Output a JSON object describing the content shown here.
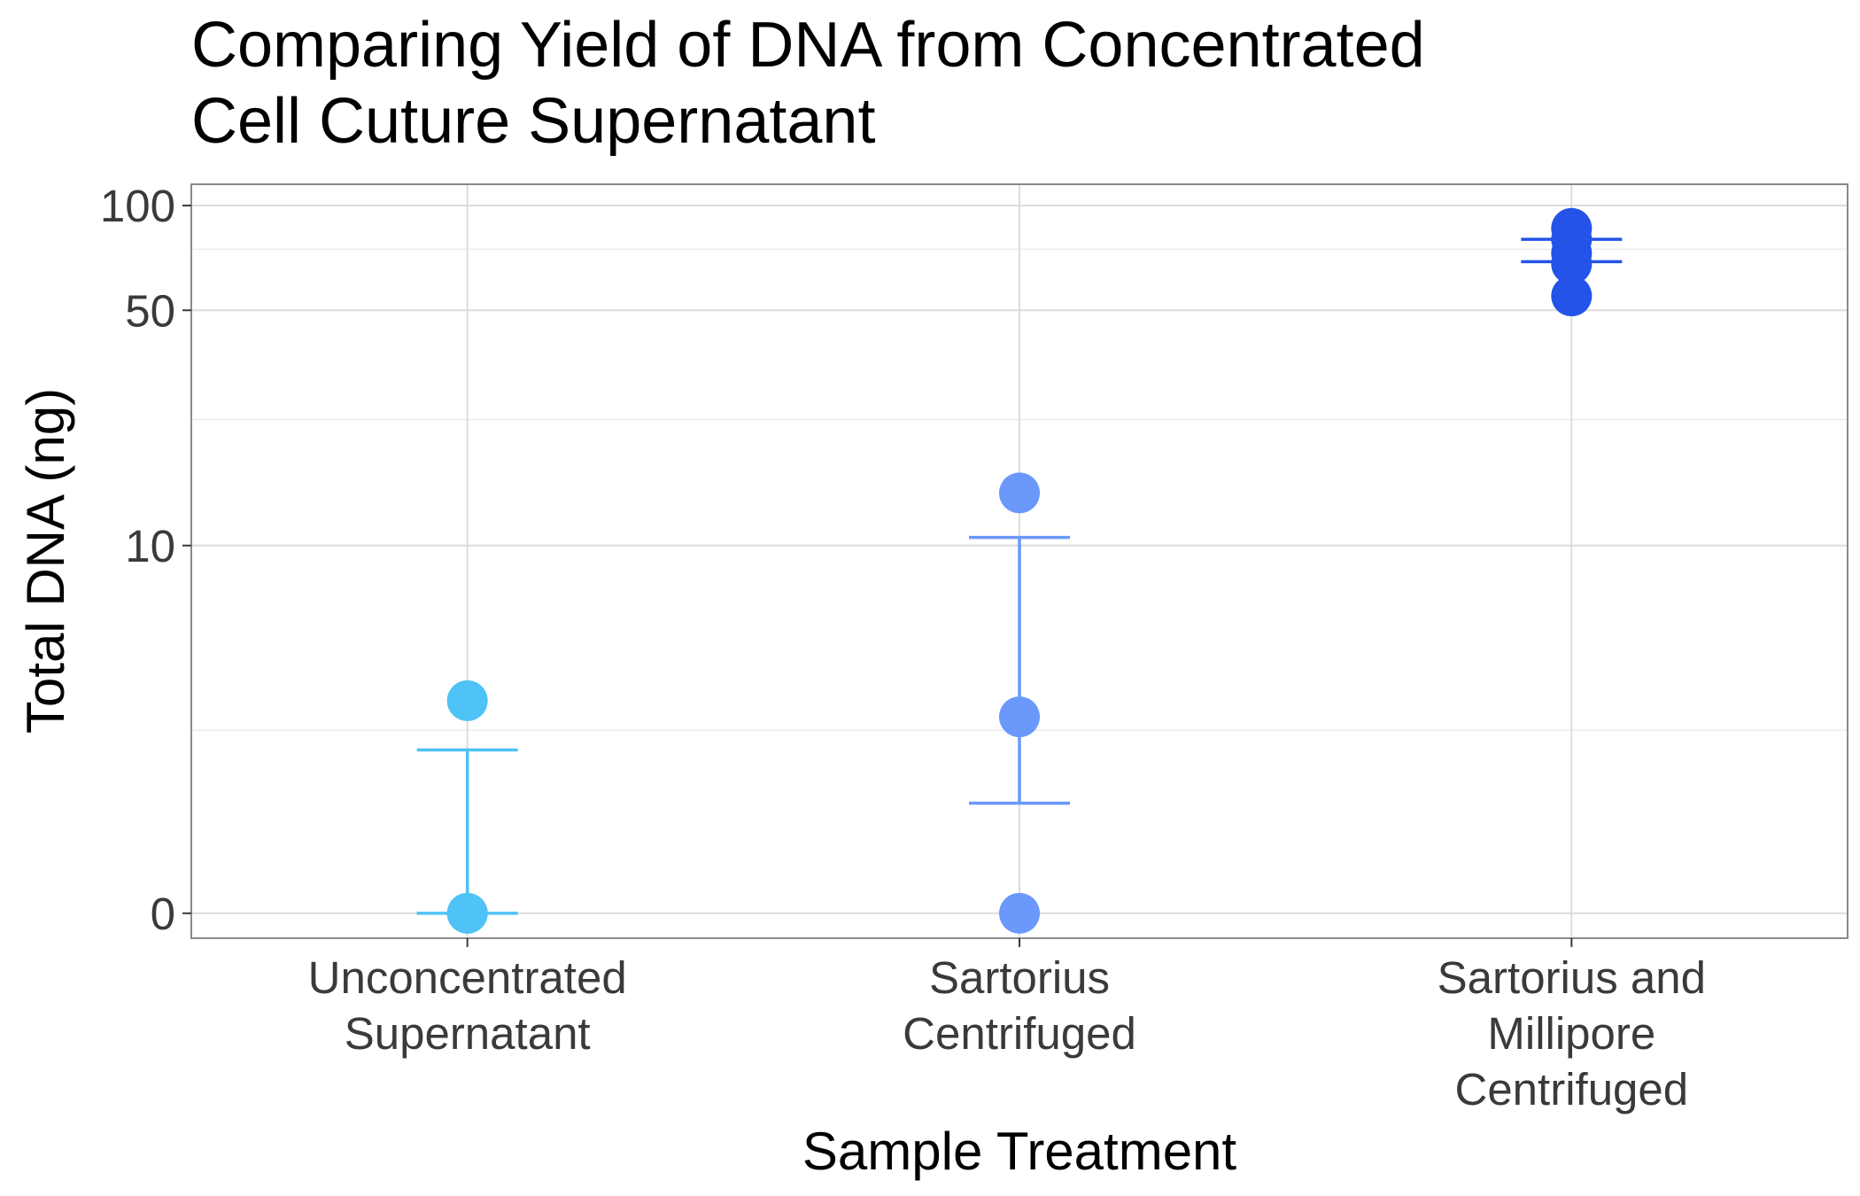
{
  "chart_data": {
    "type": "scatter",
    "title_lines": [
      "Comparing Yield of DNA from Concentrated",
      "Cell Cuture Supernatant"
    ],
    "xlabel": "Sample Treatment",
    "ylabel": "Total DNA (ng)",
    "y_scale": "pseudo-log",
    "ylim": [
      -0.15,
      115
    ],
    "y_ticks": [
      {
        "value": 0,
        "label": "0"
      },
      {
        "value": 10,
        "label": "10"
      },
      {
        "value": 50,
        "label": "50"
      },
      {
        "value": 100,
        "label": "100"
      }
    ],
    "y_minor_gridlines": [
      2.3,
      24,
      75
    ],
    "grid": true,
    "legend": "none",
    "categories": [
      {
        "lines": [
          "Unconcentrated",
          "Supernatant"
        ]
      },
      {
        "lines": [
          "Sartorius",
          "Centrifuged"
        ]
      },
      {
        "lines": [
          "Sartorius and",
          "Millipore",
          "Centrifuged"
        ]
      }
    ],
    "series": [
      {
        "color": "#4fc3f7",
        "points": [
          3.0,
          0,
          0
        ],
        "error_bar": {
          "lower": 0,
          "upper": 1.9
        }
      },
      {
        "color": "#6a98fb",
        "points": [
          14.5,
          2.6,
          0
        ],
        "error_bar": {
          "lower": 1.05,
          "upper": 10.6
        }
      },
      {
        "color": "#2453e8",
        "points": [
          86,
          80,
          73,
          68,
          55
        ],
        "error_bar": {
          "lower": 69,
          "upper": 80
        }
      }
    ]
  }
}
